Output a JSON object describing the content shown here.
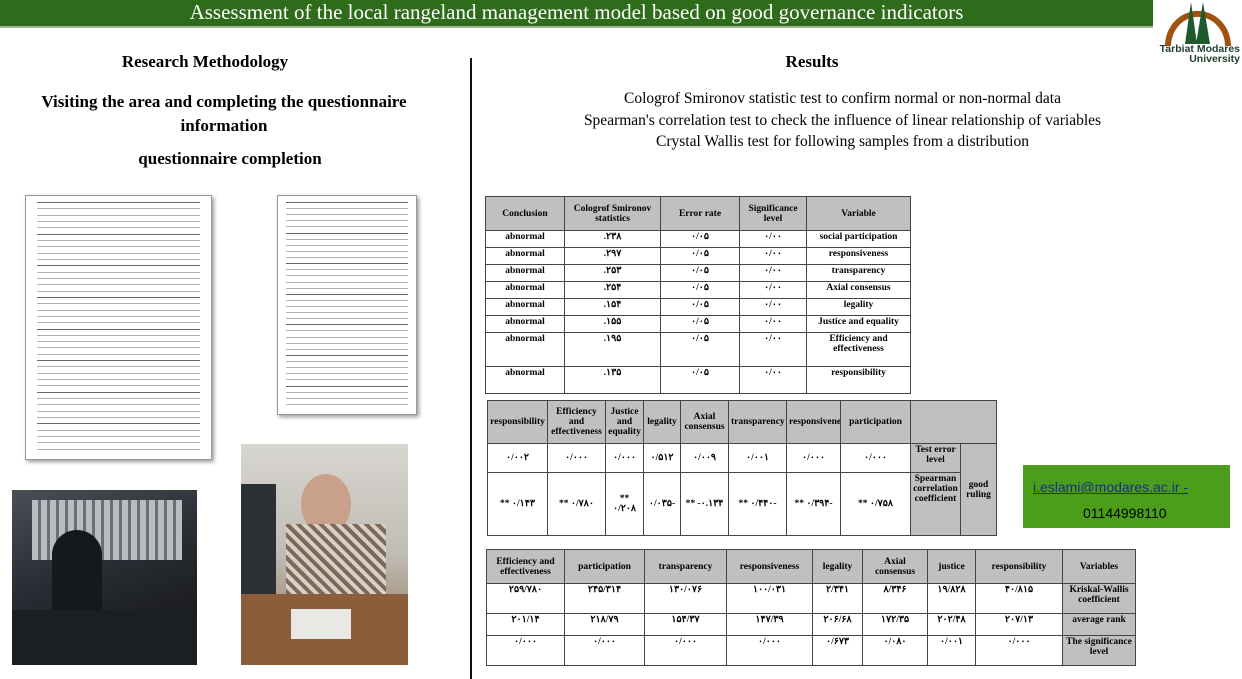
{
  "header": {
    "title": "Assessment of the local rangeland management model based on good governance indicators",
    "bg_color": "#2e6b1a"
  },
  "logo": {
    "name": "Tarbiat Modares University",
    "line1": "Tarbiat Modares",
    "line2": "University"
  },
  "left": {
    "title": "Research Methodology",
    "subtitle": "Visiting  the area and completing the questionnaire information",
    "subtitle2": "questionnaire  completion"
  },
  "right": {
    "title": "Results",
    "lines": [
      "Cologrof Smironov statistic test to confirm normal or non-normal data",
      "Spearman's correlation test to check the influence  of linear  relationship of variables",
      "Crystal Wallis test for following  samples from a distribution"
    ]
  },
  "table1": {
    "headers": [
      "Conclusion",
      "Cologrof Smironov statistics",
      "Error rate",
      "Significance level",
      "Variable"
    ],
    "rows": [
      [
        "abnormal",
        ".۲۳۸",
        "۰/۰۵",
        "۰/۰۰",
        "social participation"
      ],
      [
        "abnormal",
        ".۲۹۷",
        "۰/۰۵",
        "۰/۰۰",
        "responsiveness"
      ],
      [
        "abnormal",
        ".۲۵۳",
        "۰/۰۵",
        "۰/۰۰",
        "transparency"
      ],
      [
        "abnormal",
        ".۲۵۴",
        "۰/۰۵",
        "۰/۰۰",
        "Axial consensus"
      ],
      [
        "abnormal",
        ".۱۵۴",
        "۰/۰۵",
        "۰/۰۰",
        "legality"
      ],
      [
        "abnormal",
        ".۱۵۵",
        "۰/۰۵",
        "۰/۰۰",
        "Justice and equality"
      ],
      [
        "abnormal",
        ".۱۹۵",
        "۰/۰۵",
        "۰/۰۰",
        "Efficiency and effectiveness"
      ],
      [
        "abnormal",
        ".۱۳۵",
        "۰/۰۵",
        "۰/۰۰",
        "responsibility"
      ]
    ]
  },
  "table2": {
    "headers": [
      "responsibility",
      "Efficiency and effectiveness",
      "Justice and equality",
      "legality",
      "Axial consensus",
      "transparency",
      "responsiveness",
      "participation"
    ],
    "row_labels": [
      "Test error level",
      "Spearman correlation coefficient"
    ],
    "group_label": "good ruling",
    "rows": [
      [
        "۰/۰۰۲",
        "۰/۰۰۰",
        "۰/۰۰۰",
        "۰/۵۱۲",
        "۰/۰۰۹",
        "۰/۰۰۱",
        "۰/۰۰۰",
        "۰/۰۰۰"
      ],
      [
        "** ۰/۱۴۳",
        "** ۰/۷۸۰",
        "** ۰/۲۰۸",
        "۰/۰۳۵-",
        "** -۰.۱۳۴",
        "** ۰/۴۴۰-",
        "** ۰/۳۹۴-",
        "** ۰/۷۵۸"
      ]
    ]
  },
  "table3": {
    "headers": [
      "Efficiency and effectiveness",
      "participation",
      "transparency",
      "responsiveness",
      "legality",
      "Axial consensus",
      "justice",
      "responsibility",
      "Variables"
    ],
    "rows": [
      {
        "label": "Kriskal-Wallis coefficient",
        "values": [
          "۲۵۹/۷۸۰",
          "۲۴۵/۳۱۴",
          "۱۳۰/۰۷۶",
          "۱۰۰/۰۳۱",
          "۲/۳۴۱",
          "۸/۳۴۶",
          "۱۹/۸۲۸",
          "۴۰/۸۱۵"
        ]
      },
      {
        "label": "average rank",
        "values": [
          "۲۰۱/۱۴",
          "۲۱۸/۷۹",
          "۱۵۴/۳۷",
          "۱۴۷/۳۹",
          "۲۰۶/۶۸",
          "۱۷۲/۳۵",
          "۲۰۲/۴۸",
          "۲۰۷/۱۳"
        ]
      },
      {
        "label": "The significance level",
        "values": [
          "۰/۰۰۰",
          "۰/۰۰۰",
          "۰/۰۰۰",
          "۰/۰۰۰",
          "۰/۶۷۳",
          "۰/۰۸۰",
          "۰/۰۰۱",
          "۰/۰۰۰"
        ]
      }
    ]
  },
  "contact": {
    "email": "i.eslami@modares.ac.ir -",
    "phone": "01144998110",
    "bg_color": "#4a9e1a"
  }
}
